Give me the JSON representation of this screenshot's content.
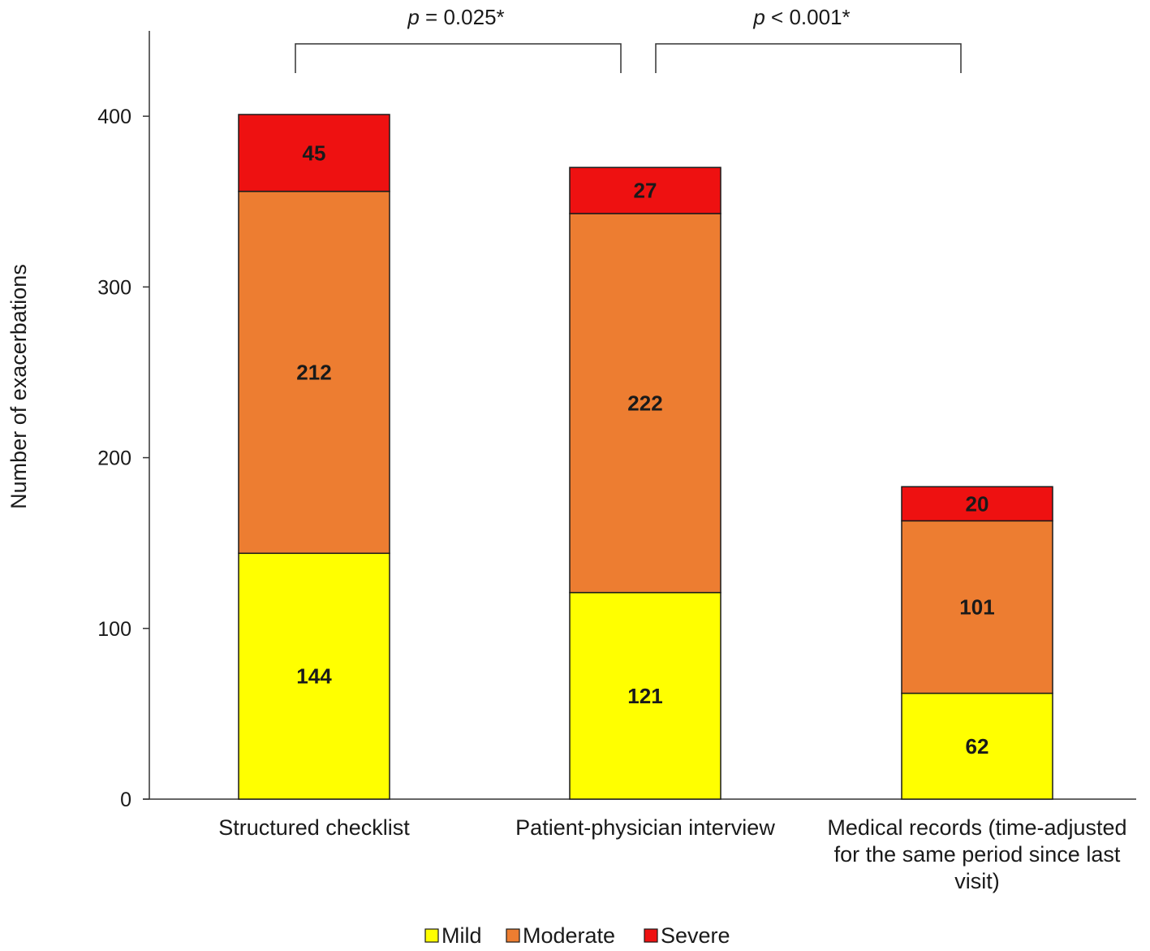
{
  "chart_data": {
    "type": "bar",
    "stacked": true,
    "ylabel": "Number of exacerbations",
    "ylim": [
      0,
      450
    ],
    "yticks": [
      0,
      100,
      200,
      300,
      400
    ],
    "grid": false,
    "legend_position": "bottom",
    "categories": [
      [
        "Structured checklist"
      ],
      [
        "Patient-physician interview"
      ],
      [
        "Medical records (time-adjusted",
        "for the same period since last",
        "visit)"
      ]
    ],
    "series": [
      {
        "name": "Mild",
        "color": "#ffff00",
        "values": [
          144,
          121,
          62
        ]
      },
      {
        "name": "Moderate",
        "color": "#ed7d31",
        "values": [
          212,
          222,
          101
        ]
      },
      {
        "name": "Severe",
        "color": "#ee1111",
        "values": [
          45,
          27,
          20
        ]
      }
    ],
    "comparisons": [
      {
        "from": 0,
        "to": 1,
        "p_prefix": "p",
        "p_text": " = 0.025*"
      },
      {
        "from": 1,
        "to": 2,
        "p_prefix": "p",
        "p_text": " < 0.001*"
      }
    ]
  }
}
